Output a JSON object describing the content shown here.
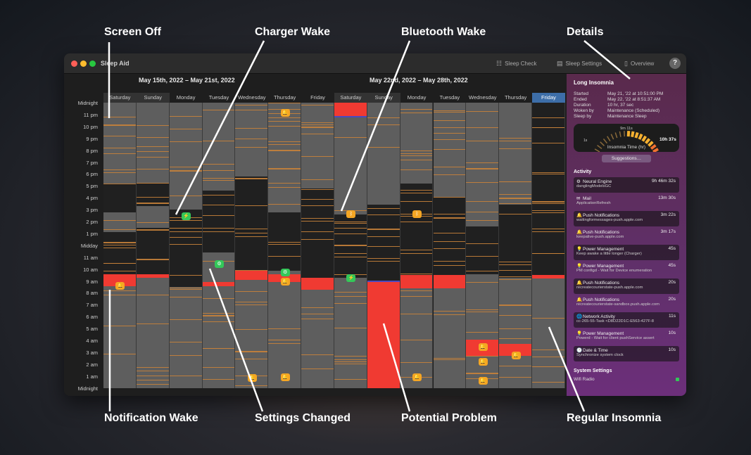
{
  "window": {
    "title": "Sleep Aid",
    "toolbar": {
      "sleep_check": "Sleep Check",
      "sleep_settings": "Sleep Settings",
      "overview": "Overview",
      "help": "?"
    }
  },
  "weeks": [
    "May 15th, 2022 – May 21st, 2022",
    "May 22nd, 2022 – May 28th, 2022"
  ],
  "hour_labels": [
    "Midnight",
    "11 pm",
    "10 pm",
    "9 pm",
    "8 pm",
    "7 pm",
    "6 pm",
    "5 pm",
    "4 pm",
    "3 pm",
    "2 pm",
    "1 pm",
    "Midday",
    "11 am",
    "10 am",
    "9 am",
    "8 am",
    "7 am",
    "6 am",
    "5 am",
    "4 am",
    "3 am",
    "2 am",
    "1 am",
    "Midnight"
  ],
  "colors": {
    "screen_off": "#5e5e5e",
    "awake": "#202020",
    "insomnia": "#f03a32",
    "event_line": "#c8823a",
    "notification": "#f5a623",
    "charger": "#34c759",
    "selected_day": "#3d6ea8"
  },
  "chart_data": {
    "type": "heatmap",
    "y_unit": "hour of day",
    "ylim": [
      0,
      24
    ],
    "days": [
      {
        "label": "Saturday",
        "awake": [
          [
            14.8,
            17.2
          ],
          [
            9.6,
            13.1
          ]
        ],
        "insomnia": [
          [
            8.6,
            9.6
          ]
        ],
        "events": [
          {
            "type": "notification",
            "hour": 8.6
          }
        ]
      },
      {
        "label": "Sunday",
        "awake": [
          [
            15.3,
            17.2
          ],
          [
            9.6,
            13.5
          ]
        ],
        "insomnia": [
          [
            9.3,
            9.6
          ]
        ],
        "events": []
      },
      {
        "label": "Monday",
        "awake": [
          [
            8.5,
            15
          ]
        ],
        "insomnia": [],
        "events": [
          {
            "type": "charger",
            "hour": 14.4
          }
        ]
      },
      {
        "label": "Tuesday",
        "awake": [
          [
            11.4,
            16.6
          ]
        ],
        "insomnia": [
          [
            8.6,
            8.9
          ]
        ],
        "events": [
          {
            "type": "settings",
            "hour": 10.4
          }
        ]
      },
      {
        "label": "Wednesday",
        "awake": [
          [
            9.9,
            17.8
          ]
        ],
        "insomnia": [
          [
            9.1,
            9.9
          ]
        ],
        "events": [
          {
            "type": "notification",
            "hour": 0.8
          }
        ]
      },
      {
        "label": "Thursday",
        "awake": [
          [
            9.9,
            14.8
          ]
        ],
        "insomnia": [
          [
            8.9,
            9.6
          ]
        ],
        "events": [
          {
            "type": "notification",
            "hour": 23.1
          },
          {
            "type": "settings",
            "hour": 9.7
          },
          {
            "type": "notification",
            "hour": 8.9
          },
          {
            "type": "notification",
            "hour": 0.9
          }
        ]
      },
      {
        "label": "Friday",
        "awake": [
          [
            9.3,
            16.8
          ]
        ],
        "insomnia": [
          [
            8.3,
            9.3
          ]
        ],
        "events": []
      },
      {
        "label": "Saturday",
        "awake": [
          [
            9.3,
            14.6
          ]
        ],
        "insomnia": [
          [
            22.9,
            24
          ]
        ],
        "events": [
          {
            "type": "bluetooth",
            "hour": 14.6
          },
          {
            "type": "charger",
            "hour": 9.2
          }
        ]
      },
      {
        "label": "Sunday",
        "awake": [
          [
            8.9,
            15.4
          ]
        ],
        "insomnia": [
          [
            0,
            8.9
          ]
        ],
        "events": []
      },
      {
        "label": "Monday",
        "awake": [
          [
            9.5,
            17.2
          ]
        ],
        "insomnia": [
          [
            8.4,
            9.5
          ]
        ],
        "events": [
          {
            "type": "bluetooth",
            "hour": 14.6
          },
          {
            "type": "notification",
            "hour": 0.9
          }
        ]
      },
      {
        "label": "Tuesday",
        "awake": [
          [
            9.5,
            16.1
          ]
        ],
        "insomnia": [
          [
            8.4,
            9.5
          ]
        ],
        "events": []
      },
      {
        "label": "Wednesday",
        "awake": [
          [
            9.6,
            13.6
          ]
        ],
        "insomnia": [
          [
            2.7,
            4.1
          ]
        ],
        "events": [
          {
            "type": "notification",
            "hour": 3.4
          },
          {
            "type": "notification",
            "hour": 2.2
          },
          {
            "type": "notification",
            "hour": 0.6
          }
        ]
      },
      {
        "label": "Thursday",
        "awake": [
          [
            9.3,
            15.4
          ]
        ],
        "insomnia": [
          [
            2.7,
            3.7
          ]
        ],
        "events": [
          {
            "type": "notification",
            "hour": 2.7
          }
        ]
      },
      {
        "label": "Friday",
        "awake": [
          [
            9.5,
            24
          ]
        ],
        "insomnia": [
          [
            9.2,
            9.5
          ]
        ],
        "events": [],
        "selected": true
      }
    ]
  },
  "details": {
    "title": "Long Insomnia",
    "rows": [
      {
        "k": "Started",
        "v": "May 21, '22 at 10:51:00 PM"
      },
      {
        "k": "Ended",
        "v": "May 22, '22 at 8:51:37 AM"
      },
      {
        "k": "Duration",
        "v": "10 hr, 37 sec"
      },
      {
        "k": "Woken by",
        "v": "Maintenance (Scheduled)"
      },
      {
        "k": "Sleep by",
        "v": "Maintenance Sleep"
      }
    ],
    "gauge": {
      "label": "Insomnia Time (hr)",
      "value_label": "10h 37s",
      "mid_label": "9m 11s",
      "min_label": "1s",
      "fraction": 0.9
    },
    "suggestions": "Suggestions…",
    "activity_title": "Activity",
    "activity": [
      {
        "icon": "gear",
        "name": "Neural Engine",
        "sub": "danglingModelsGC",
        "dur": "9h 46m 32s"
      },
      {
        "icon": "mail",
        "name": "Mail",
        "sub": "ApplicationRefresh",
        "dur": "13m 30s"
      },
      {
        "icon": "bell",
        "name": "Push Notifications",
        "sub": "waitingformessages-push.apple.com",
        "dur": "3m 22s"
      },
      {
        "icon": "bell",
        "name": "Push Notifications",
        "sub": "keepalive-push.apple.com",
        "dur": "3m 17s"
      },
      {
        "icon": "bulb",
        "name": "Power Management",
        "sub": "Keep awake a little longer (Charger)",
        "dur": "45s"
      },
      {
        "icon": "bulb",
        "name": "Power Management",
        "sub": "PM configd - Wait for Device enumeration",
        "dur": "45s"
      },
      {
        "icon": "bell",
        "name": "Push Notifications",
        "sub": "recreatecourierstate-push.apple.com",
        "dur": "20s"
      },
      {
        "icon": "bell",
        "name": "Push Notifications",
        "sub": "recreatecourierstate-sandbox.push.apple.com",
        "dur": "20s"
      },
      {
        "icon": "globe",
        "name": "Network Activity",
        "sub": "cc-265-55-Task <D8D22D1C-E563-427F-8",
        "dur": "11s"
      },
      {
        "icon": "bulb",
        "name": "Power Management",
        "sub": "Powerd - Wait for client pushService assert",
        "dur": "10s"
      },
      {
        "icon": "clock",
        "name": "Date & Time",
        "sub": "Synchronize system clock",
        "dur": "10s"
      }
    ],
    "system_settings_title": "System Settings",
    "wifi": "Wifi Radio"
  },
  "callouts": {
    "screen_off": "Screen Off",
    "charger_wake": "Charger Wake",
    "bluetooth_wake": "Bluetooth Wake",
    "details": "Details",
    "notification_wake": "Notification Wake",
    "settings_changed": "Settings Changed",
    "potential_problem": "Potential Problem",
    "regular_insomnia": "Regular Insomnia"
  }
}
